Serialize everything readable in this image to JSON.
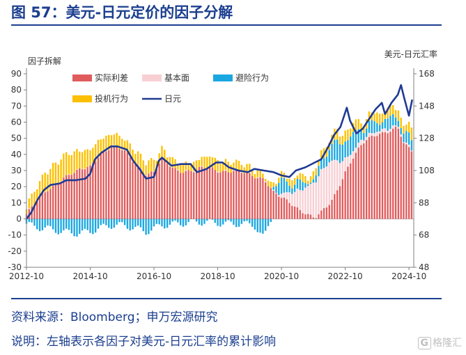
{
  "header": {
    "title": "图 57：美元-日元定价的因子分解"
  },
  "footer": {
    "source": "资料来源：Bloomberg；申万宏源研究",
    "note": "说明：左轴表示各因子对美元-日元汇率的累计影响"
  },
  "watermark": {
    "glyph": "G",
    "text": "格隆汇"
  },
  "chart_data": {
    "type": "bar",
    "stacked": true,
    "left_axis_label": "因子拆解",
    "right_axis_label": "美元-日元汇率",
    "ylim_left": [
      -30,
      90
    ],
    "yticks_left": [
      "90",
      "80",
      "70",
      "60",
      "50",
      "40",
      "30",
      "20",
      "10",
      "0",
      "-10",
      "-20",
      "-30"
    ],
    "ylim_right": [
      48,
      168
    ],
    "yticks_right": [
      "168",
      "148",
      "128",
      "108",
      "88",
      "68",
      "48"
    ],
    "xlim": [
      2012.75,
      2024.9
    ],
    "xticks": [
      {
        "label": "2012-10",
        "v": 2012.75
      },
      {
        "label": "2014-10",
        "v": 2014.75
      },
      {
        "label": "2016-10",
        "v": 2016.75
      },
      {
        "label": "2018-10",
        "v": 2018.75
      },
      {
        "label": "2020-10",
        "v": 2020.75
      },
      {
        "label": "2022-10",
        "v": 2022.75
      },
      {
        "label": "2024-10",
        "v": 2024.75
      }
    ],
    "legend": [
      {
        "name": "实际利差",
        "kind": "box",
        "color": "#e05b5b"
      },
      {
        "name": "基本面",
        "kind": "box",
        "color": "#f8cfd3"
      },
      {
        "name": "避险行为",
        "kind": "box",
        "color": "#1aa7e0"
      },
      {
        "name": "投机行为",
        "kind": "box",
        "color": "#fcc000"
      },
      {
        "name": "日元",
        "kind": "line",
        "color": "#1f3a93"
      }
    ],
    "colors": {
      "rate": "#e05b5b",
      "fund": "#f8cfd3",
      "safe": "#1aa7e0",
      "spec": "#fcc000",
      "jpy": "#1f3a93"
    },
    "factor_keyframes": [
      {
        "t": 2012.75,
        "rate": 3,
        "fund": 0,
        "safe": -3,
        "spec": 3
      },
      {
        "t": 2013.0,
        "rate": 8,
        "fund": 0,
        "safe": -5,
        "spec": 6
      },
      {
        "t": 2013.4,
        "rate": 18,
        "fund": 0,
        "safe": -6,
        "spec": 10
      },
      {
        "t": 2013.9,
        "rate": 26,
        "fund": 0,
        "safe": -8,
        "spec": 12
      },
      {
        "t": 2014.3,
        "rate": 28,
        "fund": 0,
        "safe": -9,
        "spec": 10
      },
      {
        "t": 2014.75,
        "rate": 33,
        "fund": 0,
        "safe": -8,
        "spec": 8
      },
      {
        "t": 2015.0,
        "rate": 40,
        "fund": 0,
        "safe": -6,
        "spec": 8
      },
      {
        "t": 2015.4,
        "rate": 44,
        "fund": 0,
        "safe": -4,
        "spec": 6
      },
      {
        "t": 2015.8,
        "rate": 42,
        "fund": 0,
        "safe": -4,
        "spec": 5
      },
      {
        "t": 2016.2,
        "rate": 35,
        "fund": 0,
        "safe": -6,
        "spec": 6
      },
      {
        "t": 2016.5,
        "rate": 28,
        "fund": 0,
        "safe": -8,
        "spec": 6
      },
      {
        "t": 2016.75,
        "rate": 28,
        "fund": 0,
        "safe": -6,
        "spec": 5
      },
      {
        "t": 2017.0,
        "rate": 36,
        "fund": 0,
        "safe": -4,
        "spec": 4
      },
      {
        "t": 2017.5,
        "rate": 31,
        "fund": 0,
        "safe": -3,
        "spec": 3
      },
      {
        "t": 2018.0,
        "rate": 29,
        "fund": 0,
        "safe": -2,
        "spec": 3
      },
      {
        "t": 2018.5,
        "rate": 32,
        "fund": 0,
        "safe": -2,
        "spec": 5
      },
      {
        "t": 2019.0,
        "rate": 30,
        "fund": 0,
        "safe": -3,
        "spec": 4
      },
      {
        "t": 2019.5,
        "rate": 28,
        "fund": 0,
        "safe": -3,
        "spec": 3
      },
      {
        "t": 2019.9,
        "rate": 27,
        "fund": 0,
        "safe": -4,
        "spec": 2
      },
      {
        "t": 2020.2,
        "rate": 26,
        "fund": 0,
        "safe": -12,
        "spec": 1
      },
      {
        "t": 2020.5,
        "rate": 16,
        "fund": 0,
        "safe": 4,
        "spec": 1
      },
      {
        "t": 2020.75,
        "rate": 12,
        "fund": 2,
        "safe": 8,
        "spec": 1
      },
      {
        "t": 2021.0,
        "rate": 10,
        "fund": 6,
        "safe": 6,
        "spec": 2
      },
      {
        "t": 2021.4,
        "rate": 6,
        "fund": 14,
        "safe": 4,
        "spec": 2
      },
      {
        "t": 2021.8,
        "rate": 0,
        "fund": 22,
        "safe": 2,
        "spec": 2
      },
      {
        "t": 2022.0,
        "rate": 3,
        "fund": 25,
        "safe": 6,
        "spec": 3
      },
      {
        "t": 2022.3,
        "rate": 10,
        "fund": 26,
        "safe": 10,
        "spec": 4
      },
      {
        "t": 2022.75,
        "rate": 30,
        "fund": 8,
        "safe": 12,
        "spec": 4
      },
      {
        "t": 2023.0,
        "rate": 38,
        "fund": 4,
        "safe": 10,
        "spec": 4
      },
      {
        "t": 2023.4,
        "rate": 48,
        "fund": 2,
        "safe": 6,
        "spec": 3
      },
      {
        "t": 2023.8,
        "rate": 54,
        "fund": 2,
        "safe": 6,
        "spec": 4
      },
      {
        "t": 2024.1,
        "rate": 55,
        "fund": 2,
        "safe": 6,
        "spec": 4
      },
      {
        "t": 2024.4,
        "rate": 56,
        "fund": 1,
        "safe": 6,
        "spec": 4
      },
      {
        "t": 2024.6,
        "rate": 45,
        "fund": 1,
        "safe": 5,
        "spec": 3
      },
      {
        "t": 2024.85,
        "rate": 42,
        "fund": 1,
        "safe": 6,
        "spec": 5
      }
    ],
    "jpy_series": [
      [
        2012.75,
        78
      ],
      [
        2012.9,
        82
      ],
      [
        2013.1,
        90
      ],
      [
        2013.3,
        96
      ],
      [
        2013.5,
        99
      ],
      [
        2013.8,
        100
      ],
      [
        2014.0,
        102
      ],
      [
        2014.3,
        102
      ],
      [
        2014.6,
        103
      ],
      [
        2014.75,
        106
      ],
      [
        2014.9,
        115
      ],
      [
        2015.1,
        119
      ],
      [
        2015.4,
        123
      ],
      [
        2015.6,
        123
      ],
      [
        2015.9,
        121
      ],
      [
        2016.1,
        114
      ],
      [
        2016.3,
        109
      ],
      [
        2016.5,
        103
      ],
      [
        2016.75,
        104
      ],
      [
        2016.9,
        114
      ],
      [
        2017.0,
        116
      ],
      [
        2017.3,
        111
      ],
      [
        2017.6,
        112
      ],
      [
        2017.9,
        112
      ],
      [
        2018.1,
        107
      ],
      [
        2018.4,
        109
      ],
      [
        2018.7,
        113
      ],
      [
        2018.9,
        113
      ],
      [
        2019.1,
        110
      ],
      [
        2019.4,
        108
      ],
      [
        2019.7,
        107
      ],
      [
        2019.9,
        109
      ],
      [
        2020.2,
        108
      ],
      [
        2020.5,
        107
      ],
      [
        2020.75,
        105
      ],
      [
        2021.0,
        104
      ],
      [
        2021.2,
        108
      ],
      [
        2021.5,
        110
      ],
      [
        2021.8,
        113
      ],
      [
        2022.0,
        115
      ],
      [
        2022.2,
        122
      ],
      [
        2022.4,
        130
      ],
      [
        2022.6,
        135
      ],
      [
        2022.8,
        147
      ],
      [
        2022.9,
        139
      ],
      [
        2023.1,
        131
      ],
      [
        2023.3,
        134
      ],
      [
        2023.5,
        140
      ],
      [
        2023.7,
        146
      ],
      [
        2023.9,
        150
      ],
      [
        2024.0,
        143
      ],
      [
        2024.2,
        150
      ],
      [
        2024.4,
        155
      ],
      [
        2024.5,
        161
      ],
      [
        2024.6,
        153
      ],
      [
        2024.75,
        142
      ],
      [
        2024.85,
        152
      ]
    ]
  }
}
